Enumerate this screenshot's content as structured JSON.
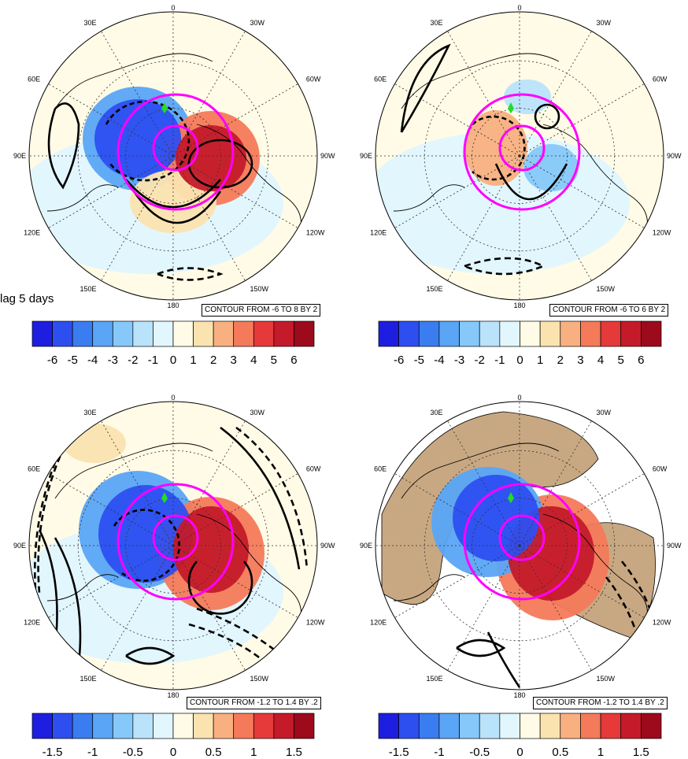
{
  "caption": "lag 5 days",
  "lon_labels": [
    "0",
    "30W",
    "60W",
    "90W",
    "120W",
    "150W",
    "180",
    "150E",
    "120E",
    "90E",
    "60E",
    "30E"
  ],
  "panels": [
    {
      "id": "top-left",
      "contour_info": "CONTOUR FROM -6 TO 8 BY 2",
      "colorbar_labels": [
        "-6",
        "-5",
        "-4",
        "-3",
        "-2",
        "-1",
        "0",
        "1",
        "2",
        "3",
        "4",
        "5",
        "6"
      ],
      "land_fill": false
    },
    {
      "id": "top-right",
      "contour_info": "CONTOUR FROM -6 TO 6 BY 2",
      "colorbar_labels": [
        "-6",
        "-5",
        "-4",
        "-3",
        "-2",
        "-1",
        "0",
        "1",
        "2",
        "3",
        "4",
        "5",
        "6"
      ],
      "land_fill": false
    },
    {
      "id": "bottom-left",
      "contour_info": "CONTOUR FROM -1.2 TO 1.4 BY .2",
      "colorbar_labels": [
        "-1.5",
        "-1",
        "-0.5",
        "0",
        "0.5",
        "1",
        "1.5"
      ],
      "land_fill": false
    },
    {
      "id": "bottom-right",
      "contour_info": "CONTOUR FROM -1.2 TO 1.4 BY .2",
      "colorbar_labels": [
        "-1.5",
        "-1",
        "-0.5",
        "0",
        "0.5",
        "1",
        "1.5"
      ],
      "land_fill": true
    }
  ],
  "colors": {
    "palette": [
      "#1e1ee0",
      "#2d4ff0",
      "#3a7df0",
      "#5aa5f5",
      "#86c8fa",
      "#b9e3fb",
      "#e2f6fe",
      "#fffbe6",
      "#fbe3b0",
      "#f9b080",
      "#f47a5a",
      "#e5393a",
      "#c41a2a",
      "#9c0a1c"
    ],
    "magenta": "#ff00ff",
    "land": "#c8a882",
    "marker": "#22dd22"
  }
}
